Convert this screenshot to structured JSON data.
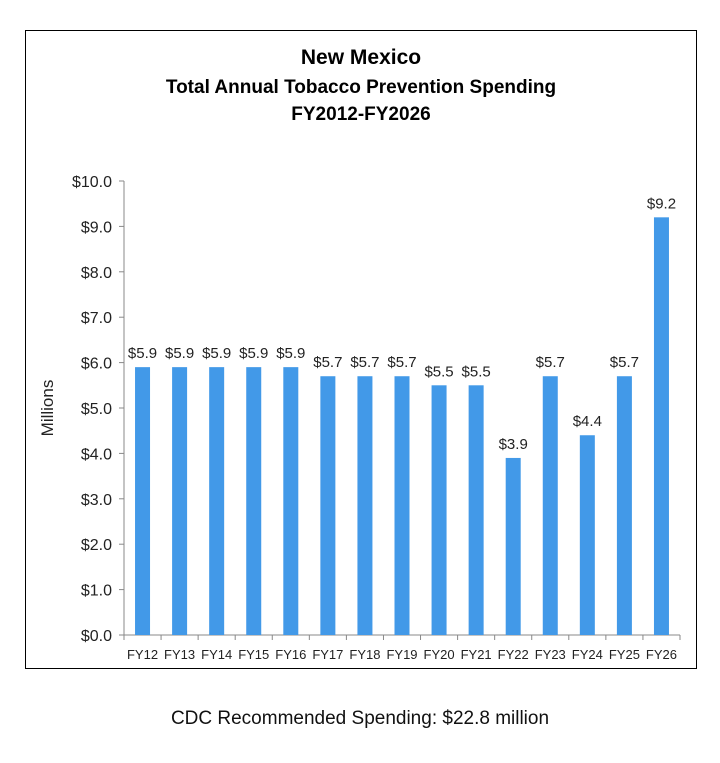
{
  "chart_data": {
    "type": "bar",
    "title": "New Mexico",
    "subtitle": [
      "Total Annual Tobacco Prevention Spending",
      "FY2012-FY2026"
    ],
    "xlabel": "",
    "ylabel": "Millions",
    "ylim": [
      0,
      10
    ],
    "yticks": [
      "$0.0",
      "$1.0",
      "$2.0",
      "$3.0",
      "$4.0",
      "$5.0",
      "$6.0",
      "$7.0",
      "$8.0",
      "$9.0",
      "$10.0"
    ],
    "categories": [
      "FY12",
      "FY13",
      "FY14",
      "FY15",
      "FY16",
      "FY17",
      "FY18",
      "FY19",
      "FY20",
      "FY21",
      "FY22",
      "FY23",
      "FY24",
      "FY25",
      "FY26"
    ],
    "values": [
      5.9,
      5.9,
      5.9,
      5.9,
      5.9,
      5.7,
      5.7,
      5.7,
      5.5,
      5.5,
      3.9,
      5.7,
      4.4,
      5.7,
      9.2
    ],
    "data_labels": [
      "$5.9",
      "$5.9",
      "$5.9",
      "$5.9",
      "$5.9",
      "$5.7",
      "$5.7",
      "$5.7",
      "$5.5",
      "$5.5",
      "$3.9",
      "$5.7",
      "$4.4",
      "$5.7",
      "$9.2"
    ],
    "grid": false,
    "bar_color": "#4299E8"
  },
  "footer": "CDC Recommended Spending: $22.8 million"
}
